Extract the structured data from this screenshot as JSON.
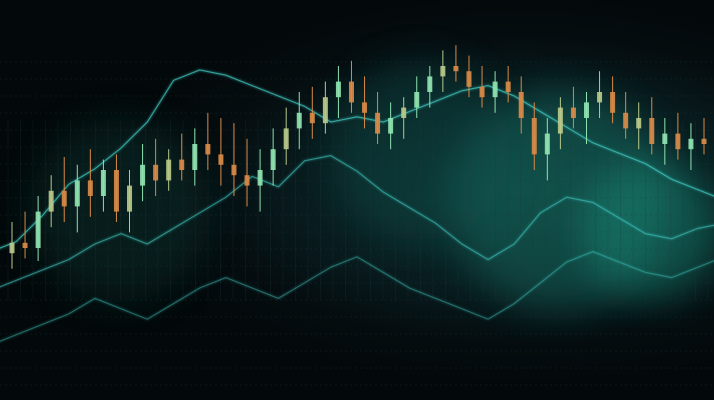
{
  "chart_data": {
    "type": "candlestick",
    "grid": true,
    "axes_visible": false,
    "legend": "none",
    "colors": {
      "background": "#04090c",
      "glow": "#0f3a37",
      "grid": "#1c3a3e",
      "candle_up": "#8fe3b0",
      "candle_mid": "#b9c98a",
      "candle_down": "#d98a48",
      "line_series": "#3fc9c0"
    },
    "ylim": [
      0,
      100
    ],
    "candles": [
      {
        "o": 18,
        "h": 30,
        "l": 12,
        "c": 22
      },
      {
        "o": 22,
        "h": 34,
        "l": 16,
        "c": 20
      },
      {
        "o": 20,
        "h": 40,
        "l": 15,
        "c": 34
      },
      {
        "o": 34,
        "h": 48,
        "l": 28,
        "c": 42
      },
      {
        "o": 42,
        "h": 55,
        "l": 30,
        "c": 36
      },
      {
        "o": 36,
        "h": 52,
        "l": 26,
        "c": 46
      },
      {
        "o": 46,
        "h": 58,
        "l": 32,
        "c": 40
      },
      {
        "o": 40,
        "h": 54,
        "l": 34,
        "c": 50
      },
      {
        "o": 50,
        "h": 56,
        "l": 30,
        "c": 34
      },
      {
        "o": 34,
        "h": 50,
        "l": 26,
        "c": 44
      },
      {
        "o": 44,
        "h": 60,
        "l": 38,
        "c": 52
      },
      {
        "o": 52,
        "h": 62,
        "l": 40,
        "c": 46
      },
      {
        "o": 46,
        "h": 58,
        "l": 42,
        "c": 54
      },
      {
        "o": 54,
        "h": 64,
        "l": 46,
        "c": 50
      },
      {
        "o": 50,
        "h": 66,
        "l": 44,
        "c": 60
      },
      {
        "o": 60,
        "h": 72,
        "l": 50,
        "c": 56
      },
      {
        "o": 56,
        "h": 70,
        "l": 44,
        "c": 52
      },
      {
        "o": 52,
        "h": 68,
        "l": 40,
        "c": 48
      },
      {
        "o": 48,
        "h": 62,
        "l": 36,
        "c": 44
      },
      {
        "o": 44,
        "h": 58,
        "l": 34,
        "c": 50
      },
      {
        "o": 50,
        "h": 66,
        "l": 44,
        "c": 58
      },
      {
        "o": 58,
        "h": 74,
        "l": 52,
        "c": 66
      },
      {
        "o": 66,
        "h": 80,
        "l": 58,
        "c": 72
      },
      {
        "o": 72,
        "h": 82,
        "l": 62,
        "c": 68
      },
      {
        "o": 68,
        "h": 84,
        "l": 64,
        "c": 78
      },
      {
        "o": 78,
        "h": 90,
        "l": 70,
        "c": 84
      },
      {
        "o": 84,
        "h": 92,
        "l": 72,
        "c": 76
      },
      {
        "o": 76,
        "h": 86,
        "l": 66,
        "c": 72
      },
      {
        "o": 72,
        "h": 80,
        "l": 60,
        "c": 64
      },
      {
        "o": 64,
        "h": 76,
        "l": 58,
        "c": 70
      },
      {
        "o": 70,
        "h": 78,
        "l": 62,
        "c": 74
      },
      {
        "o": 74,
        "h": 86,
        "l": 70,
        "c": 80
      },
      {
        "o": 80,
        "h": 90,
        "l": 74,
        "c": 86
      },
      {
        "o": 86,
        "h": 96,
        "l": 80,
        "c": 90
      },
      {
        "o": 90,
        "h": 98,
        "l": 84,
        "c": 88
      },
      {
        "o": 88,
        "h": 94,
        "l": 78,
        "c": 82
      },
      {
        "o": 82,
        "h": 90,
        "l": 74,
        "c": 78
      },
      {
        "o": 78,
        "h": 88,
        "l": 72,
        "c": 84
      },
      {
        "o": 84,
        "h": 90,
        "l": 76,
        "c": 80
      },
      {
        "o": 80,
        "h": 86,
        "l": 64,
        "c": 70
      },
      {
        "o": 70,
        "h": 76,
        "l": 50,
        "c": 56
      },
      {
        "o": 56,
        "h": 70,
        "l": 46,
        "c": 64
      },
      {
        "o": 64,
        "h": 78,
        "l": 58,
        "c": 74
      },
      {
        "o": 74,
        "h": 82,
        "l": 66,
        "c": 70
      },
      {
        "o": 70,
        "h": 80,
        "l": 60,
        "c": 76
      },
      {
        "o": 76,
        "h": 88,
        "l": 70,
        "c": 80
      },
      {
        "o": 80,
        "h": 86,
        "l": 68,
        "c": 72
      },
      {
        "o": 72,
        "h": 80,
        "l": 62,
        "c": 66
      },
      {
        "o": 66,
        "h": 76,
        "l": 58,
        "c": 70
      },
      {
        "o": 70,
        "h": 78,
        "l": 56,
        "c": 60
      },
      {
        "o": 60,
        "h": 70,
        "l": 52,
        "c": 64
      },
      {
        "o": 64,
        "h": 72,
        "l": 54,
        "c": 58
      },
      {
        "o": 58,
        "h": 68,
        "l": 50,
        "c": 62
      },
      {
        "o": 62,
        "h": 70,
        "l": 56,
        "c": 60
      }
    ],
    "line_series": [
      {
        "name": "",
        "values": [
          30,
          34,
          44,
          56,
          62,
          70,
          80,
          96,
          100,
          98,
          94,
          90,
          86,
          80,
          82,
          80,
          84,
          88,
          92,
          94,
          90,
          84,
          78,
          72,
          68,
          64,
          58,
          54,
          50
        ]
      },
      {
        "name": "",
        "values": [
          22,
          26,
          30,
          34,
          40,
          44,
          40,
          46,
          52,
          58,
          66,
          62,
          72,
          74,
          68,
          60,
          54,
          48,
          40,
          34,
          40,
          52,
          58,
          56,
          50,
          44,
          42,
          46,
          48
        ]
      },
      {
        "name": "",
        "values": [
          8,
          12,
          16,
          20,
          26,
          22,
          18,
          24,
          30,
          34,
          30,
          26,
          32,
          38,
          42,
          36,
          30,
          26,
          22,
          18,
          24,
          32,
          40,
          44,
          40,
          36,
          34,
          38,
          42
        ]
      }
    ]
  }
}
